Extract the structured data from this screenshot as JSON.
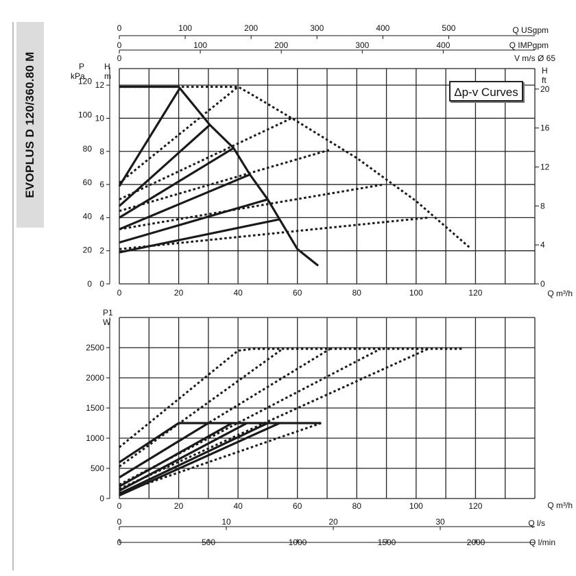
{
  "title": "EVOPLUS D 120/360.80 M",
  "chart_data": [
    {
      "type": "line",
      "title": "Δp-v Curves",
      "xlabel": "Q m³/h",
      "ylabel": "H m",
      "ylabel_left2": "P kPa",
      "ylabel_right": "H ft",
      "top_axis_1_label": "Q USgpm",
      "top_axis_2_label": "Q IMPgpm",
      "top_axis_3_label": "V m/s Ø 65",
      "xlim": [
        0,
        140
      ],
      "ylim": [
        0,
        13
      ],
      "x_ticks": [
        "0",
        "20",
        "40",
        "60",
        "80",
        "100",
        "120"
      ],
      "y_ticks_m": [
        "0",
        "2",
        "4",
        "6",
        "8",
        "10",
        "12"
      ],
      "y_ticks_kpa": [
        "0",
        "20",
        "40",
        "60",
        "80",
        "100",
        "120"
      ],
      "y_ticks_ft": [
        "0",
        "4",
        "8",
        "12",
        "16",
        "20"
      ],
      "usgpm_ticks": [
        "0",
        "100",
        "200",
        "300",
        "400",
        "500"
      ],
      "impgpm_ticks": [
        "0",
        "100",
        "200",
        "300",
        "400"
      ],
      "vms_ticks": [
        "0"
      ],
      "series": [
        {
          "style": "solid",
          "x": [
            0,
            20.5
          ],
          "y": [
            5.9,
            11.85
          ]
        },
        {
          "style": "solid",
          "x": [
            0,
            30.5
          ],
          "y": [
            4.7,
            9.6
          ]
        },
        {
          "style": "solid",
          "x": [
            0,
            38.5
          ],
          "y": [
            4.0,
            8.2
          ]
        },
        {
          "style": "solid",
          "x": [
            0,
            44
          ],
          "y": [
            3.3,
            6.6
          ]
        },
        {
          "style": "solid",
          "x": [
            0,
            50
          ],
          "y": [
            2.5,
            5.1
          ]
        },
        {
          "style": "solid",
          "x": [
            0,
            54
          ],
          "y": [
            1.9,
            3.9
          ]
        },
        {
          "style": "solid",
          "x": [
            0,
            20,
            30.5,
            38.5,
            44,
            50,
            54,
            57,
            60,
            67
          ],
          "y": [
            11.9,
            11.9,
            9.6,
            8.2,
            6.6,
            5.1,
            3.9,
            3.0,
            2.1,
            1.1
          ]
        },
        {
          "style": "dashed",
          "x": [
            0,
            20,
            40,
            44,
            60,
            80,
            100,
            118
          ],
          "y": [
            11.9,
            11.9,
            11.9,
            11.5,
            9.8,
            7.6,
            5.0,
            2.2
          ]
        },
        {
          "style": "dashed",
          "x": [
            0,
            40
          ],
          "y": [
            6.1,
            11.9
          ]
        },
        {
          "style": "dashed",
          "x": [
            0,
            58
          ],
          "y": [
            5.1,
            10.0
          ]
        },
        {
          "style": "dashed",
          "x": [
            0,
            71
          ],
          "y": [
            4.4,
            8.1
          ]
        },
        {
          "style": "dashed",
          "x": [
            0,
            89
          ],
          "y": [
            3.3,
            6.0
          ]
        },
        {
          "style": "dashed",
          "x": [
            0,
            104
          ],
          "y": [
            2.1,
            4.0
          ]
        }
      ]
    },
    {
      "type": "line",
      "xlabel": "Q m³/h",
      "ylabel": "P1 W",
      "xlim": [
        0,
        140
      ],
      "ylim": [
        0,
        3000
      ],
      "x_ticks": [
        "0",
        "20",
        "40",
        "60",
        "80",
        "100",
        "120"
      ],
      "y_ticks": [
        "0",
        "500",
        "1000",
        "1500",
        "2000",
        "2500"
      ],
      "ls_axis_label": "Q l/s",
      "ls_ticks": [
        "0",
        "10",
        "20",
        "30"
      ],
      "lmin_axis_label": "Q l/min",
      "lmin_ticks": [
        "0",
        "500",
        "1000",
        "1500",
        "2000"
      ],
      "series": [
        {
          "style": "solid",
          "x": [
            0,
            20
          ],
          "y": [
            600,
            1250
          ]
        },
        {
          "style": "solid",
          "x": [
            0,
            30
          ],
          "y": [
            350,
            1250
          ]
        },
        {
          "style": "solid",
          "x": [
            0,
            38
          ],
          "y": [
            200,
            1250
          ]
        },
        {
          "style": "solid",
          "x": [
            0,
            43
          ],
          "y": [
            130,
            1250
          ]
        },
        {
          "style": "solid",
          "x": [
            0,
            50
          ],
          "y": [
            80,
            1250
          ]
        },
        {
          "style": "solid",
          "x": [
            0,
            54
          ],
          "y": [
            50,
            1250
          ]
        },
        {
          "style": "solid",
          "x": [
            20,
            68
          ],
          "y": [
            1250,
            1250
          ]
        },
        {
          "style": "dashed",
          "x": [
            0,
            40,
            45,
            116
          ],
          "y": [
            850,
            2450,
            2480,
            2480
          ]
        },
        {
          "style": "dashed",
          "x": [
            0,
            55
          ],
          "y": [
            530,
            2480
          ]
        },
        {
          "style": "dashed",
          "x": [
            0,
            71
          ],
          "y": [
            350,
            2480
          ]
        },
        {
          "style": "dashed",
          "x": [
            0,
            88
          ],
          "y": [
            230,
            2480
          ]
        },
        {
          "style": "dashed",
          "x": [
            0,
            104
          ],
          "y": [
            160,
            2480
          ]
        },
        {
          "style": "dashed",
          "x": [
            0,
            68
          ],
          "y": [
            90,
            1250
          ]
        }
      ]
    }
  ]
}
